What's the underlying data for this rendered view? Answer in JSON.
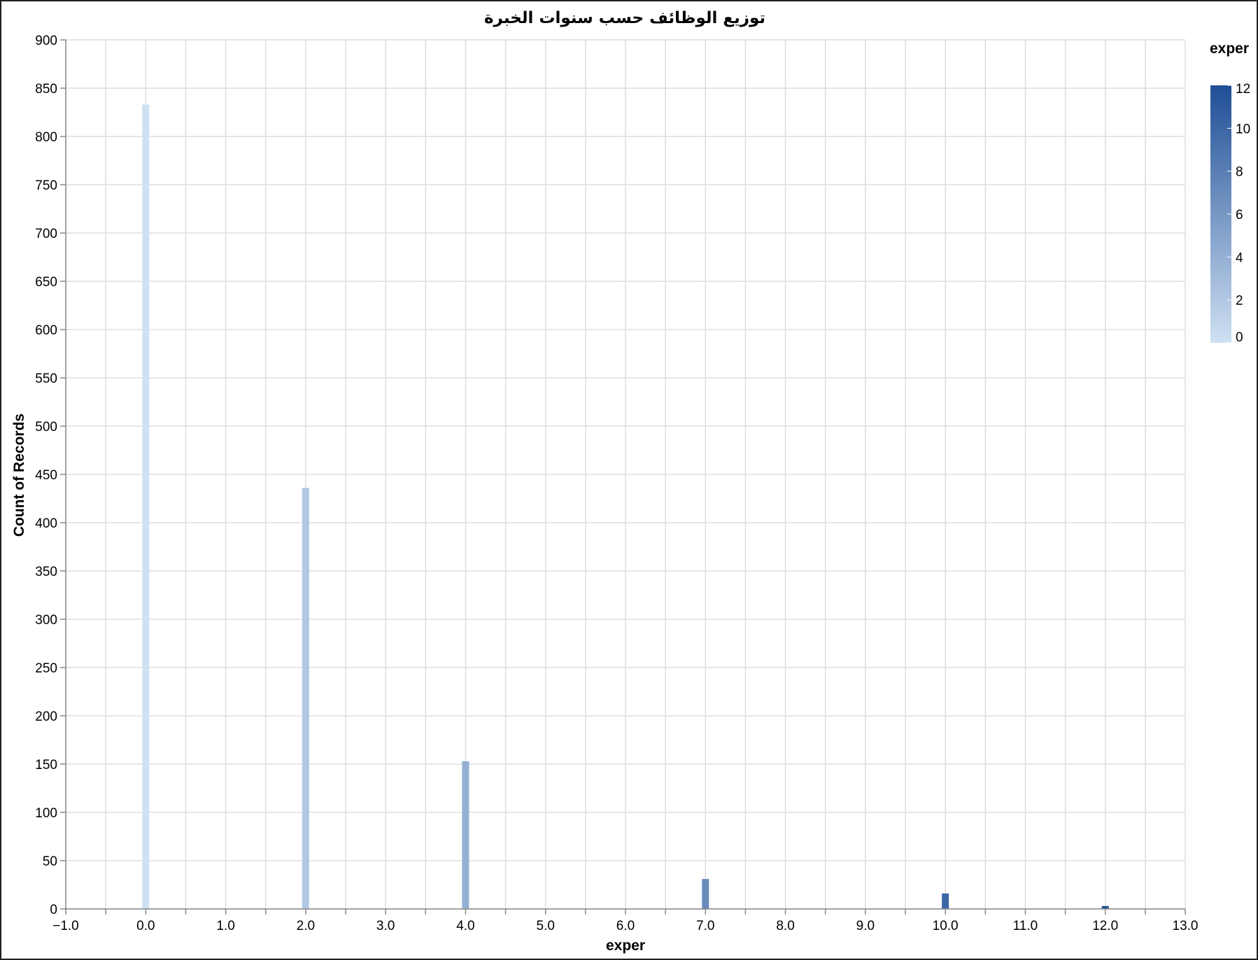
{
  "chart_data": {
    "type": "bar",
    "title": "توزيع الوظائف حسب سنوات الخبرة",
    "xlabel": "exper",
    "ylabel": "Count of Records",
    "x": [
      0,
      2,
      4,
      7,
      10,
      12
    ],
    "values": [
      833,
      436,
      153,
      31,
      16,
      3
    ],
    "xlim": [
      -1,
      13
    ],
    "ylim": [
      0,
      900
    ],
    "x_ticks": [
      -1,
      0,
      1,
      2,
      3,
      4,
      5,
      6,
      7,
      8,
      9,
      10,
      11,
      12,
      13
    ],
    "x_tick_labels": [
      "−1.0",
      "0.0",
      "1.0",
      "2.0",
      "3.0",
      "4.0",
      "5.0",
      "6.0",
      "7.0",
      "8.0",
      "9.0",
      "10.0",
      "11.0",
      "12.0",
      "13.0"
    ],
    "y_ticks": [
      0,
      50,
      100,
      150,
      200,
      250,
      300,
      350,
      400,
      450,
      500,
      550,
      600,
      650,
      700,
      750,
      800,
      850,
      900
    ],
    "grid": true,
    "legend": {
      "title": "exper",
      "type": "gradient",
      "placement": "top-right",
      "domain": [
        0,
        12
      ],
      "ticks": [
        0,
        2,
        4,
        6,
        8,
        10,
        12
      ],
      "colors": [
        "#cfe0f2",
        "#1f4e96"
      ]
    }
  }
}
